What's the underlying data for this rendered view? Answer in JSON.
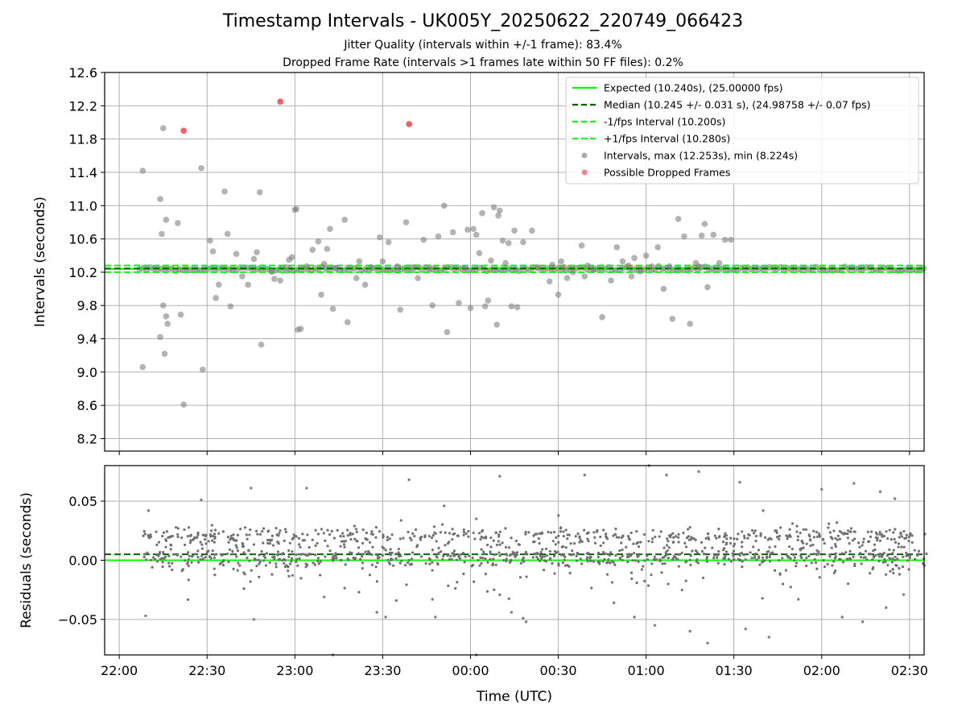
{
  "chart_data": [
    {
      "type": "scatter",
      "title": "Timestamp Intervals - UK005Y_20250622_220749_066423",
      "subtitle_lines": [
        "Jitter Quality (intervals within +/-1 frame): 83.4%",
        "Dropped Frame Rate (intervals >1 frames late within 50 FF files): 0.2%"
      ],
      "ylabel": "Intervals (seconds)",
      "ylim": [
        8.05,
        12.6
      ],
      "yticks": [
        "8.2",
        "8.6",
        "9.0",
        "9.4",
        "9.8",
        "10.2",
        "10.6",
        "11.0",
        "11.4",
        "11.8",
        "12.2",
        "12.6"
      ],
      "ytick_values": [
        8.2,
        8.6,
        9.0,
        9.4,
        9.8,
        10.2,
        10.6,
        11.0,
        11.4,
        11.8,
        12.2,
        12.6
      ],
      "xlim_minutes_from_22_00": [
        -5,
        275
      ],
      "xtick_values": [
        0,
        30,
        60,
        90,
        120,
        150,
        180,
        210,
        240,
        270
      ],
      "grid": true,
      "legend_position": "top-right",
      "reference_lines": [
        {
          "name": "Expected (10.240s), (25.00000 fps)",
          "y": 10.24,
          "color": "#00ff00",
          "style": "solid"
        },
        {
          "name": "Median (10.245 +/- 0.031 s), (24.98758 +/- 0.07 fps)",
          "y": 10.245,
          "color": "#006400",
          "style": "dashed"
        },
        {
          "name": "-1/fps Interval (10.200s)",
          "y": 10.2,
          "color": "#00ff00",
          "style": "dashed"
        },
        {
          "name": "+1/fps Interval (10.280s)",
          "y": 10.28,
          "color": "#00ff00",
          "style": "dashed"
        }
      ],
      "series": [
        {
          "name": "Intervals, max (12.253s), min (8.224s)",
          "color": "#808080",
          "points": [
            [
              8,
              11.42
            ],
            [
              8,
              9.06
            ],
            [
              14,
              11.08
            ],
            [
              14.5,
              10.66
            ],
            [
              15,
              11.93
            ],
            [
              15,
              9.8
            ],
            [
              15.5,
              9.22
            ],
            [
              16,
              9.67
            ],
            [
              16,
              10.83
            ],
            [
              16.5,
              9.58
            ],
            [
              14,
              9.42
            ],
            [
              20,
              10.79
            ],
            [
              21,
              9.69
            ],
            [
              22,
              8.61
            ],
            [
              28,
              11.45
            ],
            [
              28.5,
              9.03
            ],
            [
              31,
              10.58
            ],
            [
              32,
              10.45
            ],
            [
              33,
              9.89
            ],
            [
              34,
              10.05
            ],
            [
              36,
              11.17
            ],
            [
              37,
              10.66
            ],
            [
              38,
              9.79
            ],
            [
              40,
              10.42
            ],
            [
              42,
              10.15
            ],
            [
              44,
              10.05
            ],
            [
              46,
              10.36
            ],
            [
              47,
              10.44
            ],
            [
              48,
              11.16
            ],
            [
              48.5,
              9.33
            ],
            [
              52,
              10.21
            ],
            [
              53,
              10.12
            ],
            [
              55,
              10.1
            ],
            [
              57,
              10.26
            ],
            [
              58,
              10.35
            ],
            [
              59,
              10.38
            ],
            [
              60,
              10.95
            ],
            [
              60.5,
              10.96
            ],
            [
              61,
              9.51
            ],
            [
              62,
              9.52
            ],
            [
              64,
              10.27
            ],
            [
              66,
              10.47
            ],
            [
              68,
              10.57
            ],
            [
              69,
              9.93
            ],
            [
              70,
              10.3
            ],
            [
              71,
              10.48
            ],
            [
              72,
              10.72
            ],
            [
              73,
              9.76
            ],
            [
              74,
              10.25
            ],
            [
              77,
              10.83
            ],
            [
              78,
              9.6
            ],
            [
              81,
              10.13
            ],
            [
              82,
              10.33
            ],
            [
              84,
              10.05
            ],
            [
              86,
              10.26
            ],
            [
              89,
              10.62
            ],
            [
              90,
              10.33
            ],
            [
              92,
              10.56
            ],
            [
              95,
              10.27
            ],
            [
              96,
              9.75
            ],
            [
              98,
              10.8
            ],
            [
              100,
              10.26
            ],
            [
              102,
              10.13
            ],
            [
              104,
              10.59
            ],
            [
              106,
              10.23
            ],
            [
              107,
              9.8
            ],
            [
              109,
              10.63
            ],
            [
              111,
              11.0
            ],
            [
              112,
              9.48
            ],
            [
              114,
              10.68
            ],
            [
              116,
              9.83
            ],
            [
              118,
              10.25
            ],
            [
              119,
              10.71
            ],
            [
              120,
              9.77
            ],
            [
              121,
              10.72
            ],
            [
              122,
              10.65
            ],
            [
              123,
              10.43
            ],
            [
              124,
              10.91
            ],
            [
              125,
              9.79
            ],
            [
              126,
              9.86
            ],
            [
              127,
              10.34
            ],
            [
              128,
              10.98
            ],
            [
              129,
              9.57
            ],
            [
              129.5,
              10.88
            ],
            [
              130,
              10.94
            ],
            [
              131,
              10.58
            ],
            [
              132,
              10.31
            ],
            [
              133,
              10.55
            ],
            [
              134,
              9.79
            ],
            [
              135,
              10.7
            ],
            [
              136,
              9.78
            ],
            [
              138,
              10.56
            ],
            [
              141,
              10.7
            ],
            [
              143,
              10.25
            ],
            [
              147,
              10.09
            ],
            [
              148,
              10.29
            ],
            [
              150,
              9.93
            ],
            [
              151,
              10.33
            ],
            [
              152,
              10.26
            ],
            [
              153,
              10.13
            ],
            [
              155,
              10.2
            ],
            [
              158,
              10.52
            ],
            [
              159,
              10.15
            ],
            [
              160,
              10.28
            ],
            [
              162,
              10.23
            ],
            [
              165,
              9.66
            ],
            [
              168,
              10.1
            ],
            [
              170,
              10.5
            ],
            [
              172,
              10.33
            ],
            [
              174,
              10.28
            ],
            [
              175,
              10.15
            ],
            [
              176,
              10.37
            ],
            [
              178,
              10.21
            ],
            [
              180,
              10.4
            ],
            [
              182,
              10.27
            ],
            [
              184,
              10.5
            ],
            [
              186,
              10.0
            ],
            [
              188,
              10.27
            ],
            [
              189,
              9.64
            ],
            [
              191,
              10.84
            ],
            [
              193,
              10.63
            ],
            [
              195,
              9.58
            ],
            [
              197,
              10.31
            ],
            [
              198,
              10.27
            ],
            [
              199,
              10.64
            ],
            [
              200,
              10.78
            ],
            [
              201,
              10.02
            ],
            [
              203,
              10.65
            ],
            [
              205,
              10.31
            ],
            [
              207,
              10.59
            ],
            [
              209,
              10.59
            ]
          ]
        },
        {
          "name": "Possible Dropped Frames",
          "color": "#ff4040",
          "points": [
            [
              22,
              11.9
            ],
            [
              55,
              12.25
            ],
            [
              99,
              11.98
            ]
          ]
        }
      ]
    },
    {
      "type": "scatter",
      "xlabel": "Time (UTC)",
      "ylabel": "Residuals (seconds)",
      "ylim": [
        -0.08,
        0.08
      ],
      "yticks": [
        "−0.05",
        "0.00",
        "0.05"
      ],
      "ytick_values": [
        -0.05,
        0.0,
        0.05
      ],
      "xticks": [
        "22:00",
        "22:30",
        "23:00",
        "23:30",
        "00:00",
        "00:30",
        "01:00",
        "01:30",
        "02:00",
        "02:30"
      ],
      "xtick_values": [
        0,
        30,
        60,
        90,
        120,
        150,
        180,
        210,
        240,
        270
      ],
      "xlim_minutes_from_22_00": [
        -5,
        275
      ],
      "grid": true,
      "reference_lines": [
        {
          "y": 0.0,
          "color": "#00ff00",
          "style": "solid"
        },
        {
          "y": 0.005,
          "color": "#006400",
          "style": "dashed"
        }
      ],
      "series": [
        {
          "color": "#808080",
          "points": [
            [
              9,
              -0.047
            ],
            [
              10,
              0.042
            ],
            [
              28,
              0.051
            ],
            [
              45,
              0.061
            ],
            [
              46,
              -0.05
            ],
            [
              64,
              0.061
            ],
            [
              70,
              -0.031
            ],
            [
              73,
              -0.08
            ],
            [
              88,
              -0.044
            ],
            [
              91,
              -0.048
            ],
            [
              99,
              0.068
            ],
            [
              107,
              -0.033
            ],
            [
              111,
              0.046
            ],
            [
              108,
              -0.048
            ],
            [
              122,
              -0.08
            ],
            [
              122,
              0.035
            ],
            [
              130,
              0.071
            ],
            [
              134,
              -0.044
            ],
            [
              138,
              -0.049
            ],
            [
              139,
              -0.052
            ],
            [
              159,
              0.072
            ],
            [
              169,
              -0.036
            ],
            [
              176,
              -0.048
            ],
            [
              181,
              0.08
            ],
            [
              183,
              -0.055
            ],
            [
              187,
              0.072
            ],
            [
              195,
              -0.06
            ],
            [
              198,
              0.075
            ],
            [
              201,
              -0.07
            ],
            [
              212,
              0.066
            ],
            [
              214,
              -0.058
            ],
            [
              220,
              0.042
            ],
            [
              222,
              -0.065
            ],
            [
              232,
              -0.033
            ],
            [
              240,
              0.06
            ],
            [
              247,
              -0.048
            ],
            [
              251,
              0.065
            ],
            [
              254,
              -0.052
            ],
            [
              260,
              0.058
            ],
            [
              262,
              -0.04
            ],
            [
              265,
              0.052
            ],
            [
              268,
              -0.029
            ]
          ]
        }
      ]
    }
  ]
}
